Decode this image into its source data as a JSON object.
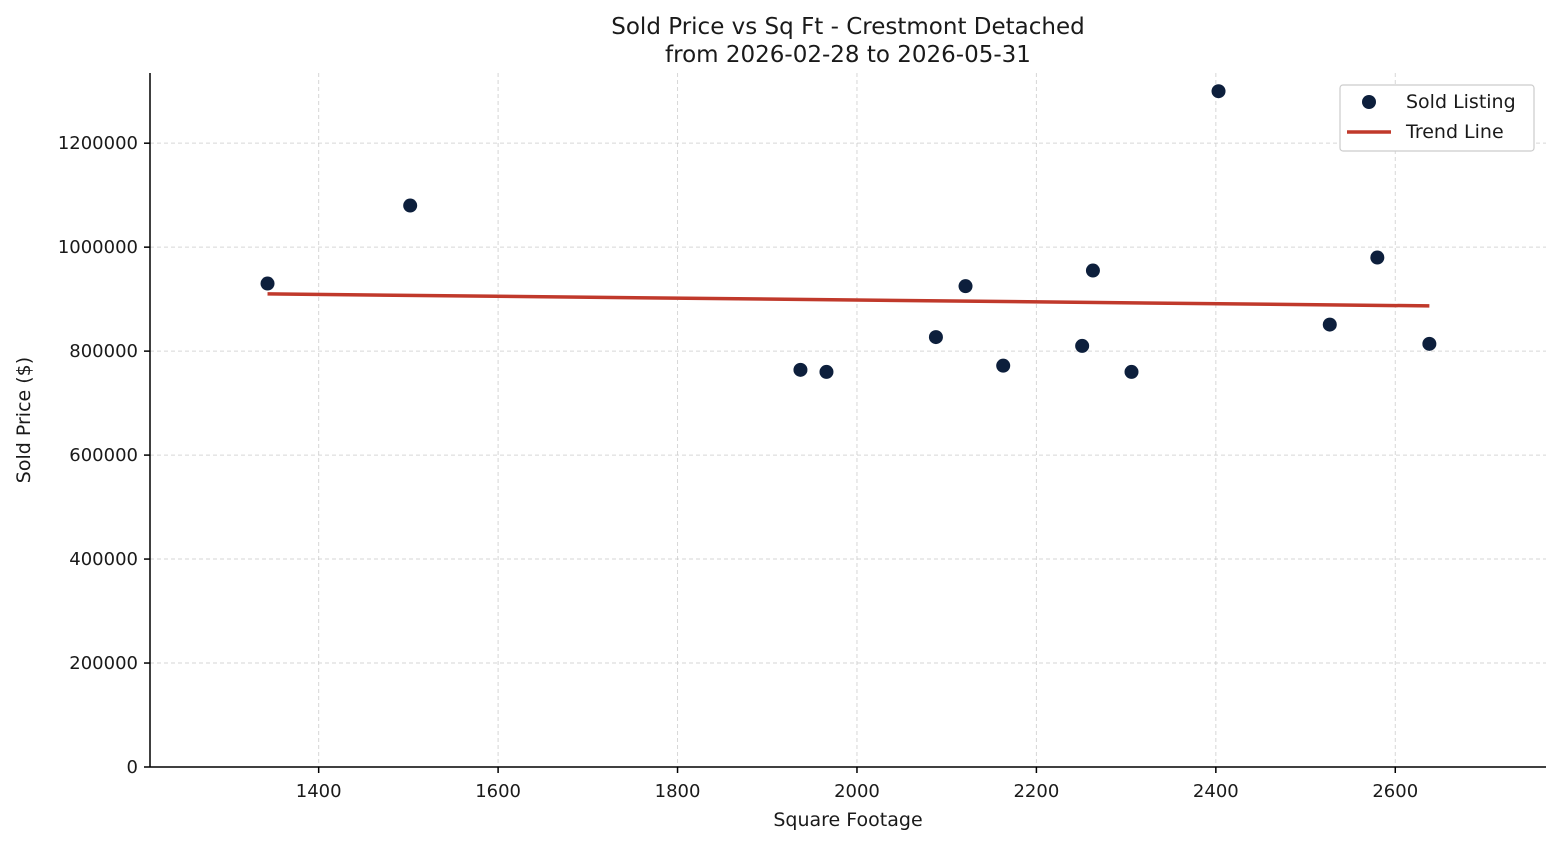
{
  "chart_data": {
    "type": "scatter",
    "title": "Sold Price vs Sq Ft - Crestmont Detached",
    "subtitle": "from 2026-02-28 to 2026-05-31",
    "xlabel": "Square Footage",
    "ylabel": "Sold Price ($)",
    "xlim": [
      1212,
      2768
    ],
    "ylim": [
      0,
      1335000
    ],
    "xticks": [
      1400,
      1600,
      1800,
      2000,
      2200,
      2400,
      2600
    ],
    "yticks": [
      0,
      200000,
      400000,
      600000,
      800000,
      1000000,
      1200000
    ],
    "grid": true,
    "legend_position": "top-right",
    "series": [
      {
        "name": "Sold Listing",
        "kind": "scatter",
        "color": "#0d1f3c",
        "points": [
          {
            "x": 1343,
            "y": 930000
          },
          {
            "x": 1502,
            "y": 1080000
          },
          {
            "x": 1937,
            "y": 764000
          },
          {
            "x": 1966,
            "y": 760000
          },
          {
            "x": 2088,
            "y": 827000
          },
          {
            "x": 2121,
            "y": 925000
          },
          {
            "x": 2163,
            "y": 772000
          },
          {
            "x": 2251,
            "y": 810000
          },
          {
            "x": 2263,
            "y": 955000
          },
          {
            "x": 2306,
            "y": 760000
          },
          {
            "x": 2403,
            "y": 1300000
          },
          {
            "x": 2527,
            "y": 851000
          },
          {
            "x": 2580,
            "y": 980000
          },
          {
            "x": 2638,
            "y": 814000
          }
        ]
      },
      {
        "name": "Trend Line",
        "kind": "line",
        "color": "#c0392b",
        "points": [
          {
            "x": 1343,
            "y": 910000
          },
          {
            "x": 2638,
            "y": 887000
          }
        ]
      }
    ]
  }
}
